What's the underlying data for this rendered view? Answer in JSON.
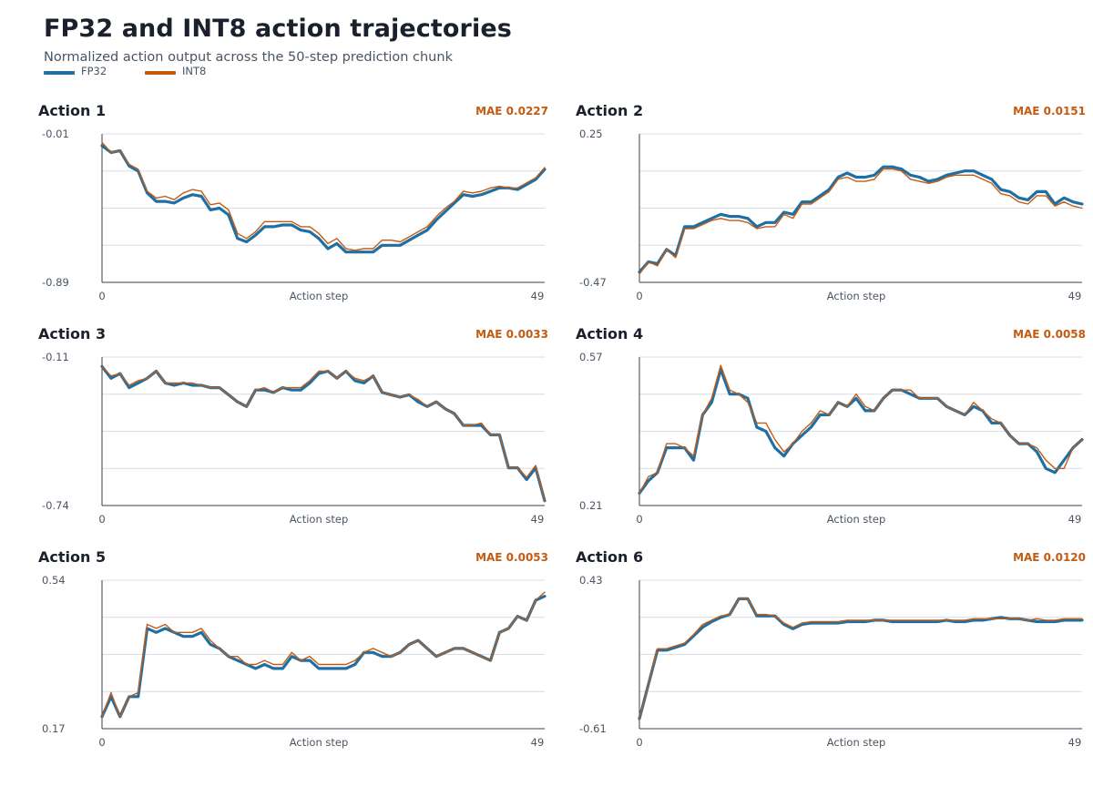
{
  "title": "FP32 and INT8 action trajectories",
  "subtitle": "Normalized action output across the 50-step prediction chunk",
  "legend": [
    {
      "label": "FP32",
      "color": "#1f6fa3"
    },
    {
      "label": "INT8",
      "color": "#c55a11"
    }
  ],
  "chart_data": [
    {
      "type": "line",
      "title": "Action 1",
      "annotation": "MAE 0.0227",
      "xlabel": "Action step",
      "xlim": [
        0,
        49
      ],
      "ylim": [
        -0.89,
        -0.01
      ],
      "ytick_labels": [
        "-0.01",
        "-0.89"
      ],
      "xtick_labels": [
        "0",
        "49"
      ],
      "x": [
        0,
        1,
        2,
        3,
        4,
        5,
        6,
        7,
        8,
        9,
        10,
        11,
        12,
        13,
        14,
        15,
        16,
        17,
        18,
        19,
        20,
        21,
        22,
        23,
        24,
        25,
        26,
        27,
        28,
        29,
        30,
        31,
        32,
        33,
        34,
        35,
        36,
        37,
        38,
        39,
        40,
        41,
        42,
        43,
        44,
        45,
        46,
        47,
        48,
        49
      ],
      "series": [
        {
          "name": "FP32",
          "values": [
            -0.08,
            -0.12,
            -0.11,
            -0.2,
            -0.23,
            -0.36,
            -0.41,
            -0.41,
            -0.42,
            -0.39,
            -0.37,
            -0.38,
            -0.46,
            -0.45,
            -0.49,
            -0.63,
            -0.65,
            -0.61,
            -0.56,
            -0.56,
            -0.55,
            -0.55,
            -0.58,
            -0.59,
            -0.63,
            -0.69,
            -0.66,
            -0.71,
            -0.71,
            -0.71,
            -0.71,
            -0.67,
            -0.67,
            -0.67,
            -0.64,
            -0.61,
            -0.58,
            -0.52,
            -0.47,
            -0.42,
            -0.37,
            -0.38,
            -0.37,
            -0.35,
            -0.33,
            -0.33,
            -0.34,
            -0.31,
            -0.28,
            -0.22
          ]
        },
        {
          "name": "INT8",
          "values": [
            -0.06,
            -0.12,
            -0.11,
            -0.19,
            -0.22,
            -0.35,
            -0.39,
            -0.38,
            -0.4,
            -0.36,
            -0.34,
            -0.35,
            -0.43,
            -0.42,
            -0.46,
            -0.6,
            -0.63,
            -0.59,
            -0.53,
            -0.53,
            -0.53,
            -0.53,
            -0.56,
            -0.56,
            -0.6,
            -0.66,
            -0.63,
            -0.69,
            -0.7,
            -0.69,
            -0.69,
            -0.64,
            -0.64,
            -0.65,
            -0.62,
            -0.59,
            -0.56,
            -0.5,
            -0.45,
            -0.41,
            -0.35,
            -0.36,
            -0.35,
            -0.33,
            -0.32,
            -0.33,
            -0.33,
            -0.3,
            -0.27,
            -0.21
          ]
        }
      ]
    },
    {
      "type": "line",
      "title": "Action 2",
      "annotation": "MAE 0.0151",
      "xlabel": "Action step",
      "xlim": [
        0,
        49
      ],
      "ylim": [
        -0.47,
        0.25
      ],
      "ytick_labels": [
        "0.25",
        "-0.47"
      ],
      "xtick_labels": [
        "0",
        "49"
      ],
      "x": [
        0,
        1,
        2,
        3,
        4,
        5,
        6,
        7,
        8,
        9,
        10,
        11,
        12,
        13,
        14,
        15,
        16,
        17,
        18,
        19,
        20,
        21,
        22,
        23,
        24,
        25,
        26,
        27,
        28,
        29,
        30,
        31,
        32,
        33,
        34,
        35,
        36,
        37,
        38,
        39,
        40,
        41,
        42,
        43,
        44,
        45,
        46,
        47,
        48,
        49
      ],
      "series": [
        {
          "name": "FP32",
          "values": [
            -0.42,
            -0.37,
            -0.38,
            -0.31,
            -0.34,
            -0.2,
            -0.2,
            -0.18,
            -0.16,
            -0.14,
            -0.15,
            -0.15,
            -0.16,
            -0.2,
            -0.18,
            -0.18,
            -0.13,
            -0.14,
            -0.08,
            -0.08,
            -0.05,
            -0.02,
            0.04,
            0.06,
            0.04,
            0.04,
            0.05,
            0.09,
            0.09,
            0.08,
            0.05,
            0.04,
            0.02,
            0.03,
            0.05,
            0.06,
            0.07,
            0.07,
            0.05,
            0.03,
            -0.02,
            -0.03,
            -0.06,
            -0.07,
            -0.03,
            -0.03,
            -0.09,
            -0.06,
            -0.08,
            -0.09
          ]
        },
        {
          "name": "INT8",
          "values": [
            -0.43,
            -0.37,
            -0.39,
            -0.31,
            -0.35,
            -0.21,
            -0.21,
            -0.19,
            -0.17,
            -0.16,
            -0.17,
            -0.17,
            -0.18,
            -0.21,
            -0.2,
            -0.2,
            -0.14,
            -0.16,
            -0.09,
            -0.09,
            -0.06,
            -0.03,
            0.03,
            0.04,
            0.02,
            0.02,
            0.03,
            0.08,
            0.08,
            0.07,
            0.03,
            0.02,
            0.01,
            0.02,
            0.04,
            0.05,
            0.05,
            0.05,
            0.03,
            0.01,
            -0.04,
            -0.05,
            -0.08,
            -0.09,
            -0.05,
            -0.05,
            -0.1,
            -0.08,
            -0.1,
            -0.11
          ]
        }
      ]
    },
    {
      "type": "line",
      "title": "Action 3",
      "annotation": "MAE 0.0033",
      "xlabel": "Action step",
      "xlim": [
        0,
        49
      ],
      "ylim": [
        -0.74,
        -0.11
      ],
      "ytick_labels": [
        "-0.11",
        "-0.74"
      ],
      "xtick_labels": [
        "0",
        "49"
      ],
      "x": [
        0,
        1,
        2,
        3,
        4,
        5,
        6,
        7,
        8,
        9,
        10,
        11,
        12,
        13,
        14,
        15,
        16,
        17,
        18,
        19,
        20,
        21,
        22,
        23,
        24,
        25,
        26,
        27,
        28,
        29,
        30,
        31,
        32,
        33,
        34,
        35,
        36,
        37,
        38,
        39,
        40,
        41,
        42,
        43,
        44,
        45,
        46,
        47,
        48,
        49
      ],
      "series": [
        {
          "name": "FP32",
          "values": [
            -0.15,
            -0.2,
            -0.18,
            -0.24,
            -0.22,
            -0.2,
            -0.17,
            -0.22,
            -0.23,
            -0.22,
            -0.23,
            -0.23,
            -0.24,
            -0.24,
            -0.27,
            -0.3,
            -0.32,
            -0.25,
            -0.25,
            -0.26,
            -0.24,
            -0.25,
            -0.25,
            -0.22,
            -0.18,
            -0.17,
            -0.2,
            -0.17,
            -0.21,
            -0.22,
            -0.19,
            -0.26,
            -0.27,
            -0.28,
            -0.27,
            -0.3,
            -0.32,
            -0.3,
            -0.33,
            -0.35,
            -0.4,
            -0.4,
            -0.4,
            -0.44,
            -0.44,
            -0.58,
            -0.58,
            -0.63,
            -0.58,
            -0.72
          ]
        },
        {
          "name": "INT8",
          "values": [
            -0.15,
            -0.19,
            -0.18,
            -0.23,
            -0.21,
            -0.2,
            -0.17,
            -0.22,
            -0.22,
            -0.22,
            -0.22,
            -0.23,
            -0.24,
            -0.24,
            -0.27,
            -0.3,
            -0.32,
            -0.25,
            -0.24,
            -0.26,
            -0.24,
            -0.24,
            -0.24,
            -0.21,
            -0.17,
            -0.17,
            -0.2,
            -0.17,
            -0.2,
            -0.21,
            -0.19,
            -0.26,
            -0.27,
            -0.28,
            -0.27,
            -0.29,
            -0.32,
            -0.3,
            -0.33,
            -0.35,
            -0.4,
            -0.4,
            -0.39,
            -0.44,
            -0.44,
            -0.58,
            -0.58,
            -0.62,
            -0.57,
            -0.72
          ]
        }
      ]
    },
    {
      "type": "line",
      "title": "Action 4",
      "annotation": "MAE 0.0058",
      "xlabel": "Action step",
      "xlim": [
        0,
        49
      ],
      "ylim": [
        0.21,
        0.57
      ],
      "ytick_labels": [
        "0.57",
        "0.21"
      ],
      "xtick_labels": [
        "0",
        "49"
      ],
      "x": [
        0,
        1,
        2,
        3,
        4,
        5,
        6,
        7,
        8,
        9,
        10,
        11,
        12,
        13,
        14,
        15,
        16,
        17,
        18,
        19,
        20,
        21,
        22,
        23,
        24,
        25,
        26,
        27,
        28,
        29,
        30,
        31,
        32,
        33,
        34,
        35,
        36,
        37,
        38,
        39,
        40,
        41,
        42,
        43,
        44,
        45,
        46,
        47,
        48,
        49
      ],
      "series": [
        {
          "name": "FP32",
          "values": [
            0.24,
            0.27,
            0.29,
            0.35,
            0.35,
            0.35,
            0.32,
            0.43,
            0.46,
            0.54,
            0.48,
            0.48,
            0.47,
            0.4,
            0.39,
            0.35,
            0.33,
            0.36,
            0.38,
            0.4,
            0.43,
            0.43,
            0.46,
            0.45,
            0.47,
            0.44,
            0.44,
            0.47,
            0.49,
            0.49,
            0.48,
            0.47,
            0.47,
            0.47,
            0.45,
            0.44,
            0.43,
            0.45,
            0.44,
            0.41,
            0.41,
            0.38,
            0.36,
            0.36,
            0.34,
            0.3,
            0.29,
            0.32,
            0.35,
            0.37
          ]
        },
        {
          "name": "INT8",
          "values": [
            0.24,
            0.28,
            0.29,
            0.36,
            0.36,
            0.35,
            0.33,
            0.43,
            0.47,
            0.55,
            0.49,
            0.48,
            0.46,
            0.41,
            0.41,
            0.37,
            0.34,
            0.36,
            0.39,
            0.41,
            0.44,
            0.43,
            0.46,
            0.45,
            0.48,
            0.45,
            0.44,
            0.47,
            0.49,
            0.49,
            0.49,
            0.47,
            0.47,
            0.47,
            0.45,
            0.44,
            0.43,
            0.46,
            0.44,
            0.42,
            0.41,
            0.38,
            0.36,
            0.36,
            0.35,
            0.32,
            0.3,
            0.3,
            0.35,
            0.37
          ]
        }
      ]
    },
    {
      "type": "line",
      "title": "Action 5",
      "annotation": "MAE 0.0053",
      "xlabel": "Action step",
      "xlim": [
        0,
        49
      ],
      "ylim": [
        0.17,
        0.54
      ],
      "ytick_labels": [
        "0.54",
        "0.17"
      ],
      "xtick_labels": [
        "0",
        "49"
      ],
      "x": [
        0,
        1,
        2,
        3,
        4,
        5,
        6,
        7,
        8,
        9,
        10,
        11,
        12,
        13,
        14,
        15,
        16,
        17,
        18,
        19,
        20,
        21,
        22,
        23,
        24,
        25,
        26,
        27,
        28,
        29,
        30,
        31,
        32,
        33,
        34,
        35,
        36,
        37,
        38,
        39,
        40,
        41,
        42,
        43,
        44,
        45,
        46,
        47,
        48,
        49
      ],
      "series": [
        {
          "name": "FP32",
          "values": [
            0.2,
            0.25,
            0.2,
            0.25,
            0.25,
            0.42,
            0.41,
            0.42,
            0.41,
            0.4,
            0.4,
            0.41,
            0.38,
            0.37,
            0.35,
            0.34,
            0.33,
            0.32,
            0.33,
            0.32,
            0.32,
            0.35,
            0.34,
            0.34,
            0.32,
            0.32,
            0.32,
            0.32,
            0.33,
            0.36,
            0.36,
            0.35,
            0.35,
            0.36,
            0.38,
            0.39,
            0.37,
            0.35,
            0.36,
            0.37,
            0.37,
            0.36,
            0.35,
            0.34,
            0.41,
            0.42,
            0.45,
            0.44,
            0.49,
            0.5
          ]
        },
        {
          "name": "INT8",
          "values": [
            0.2,
            0.26,
            0.2,
            0.25,
            0.26,
            0.43,
            0.42,
            0.43,
            0.41,
            0.41,
            0.41,
            0.42,
            0.39,
            0.37,
            0.35,
            0.35,
            0.33,
            0.33,
            0.34,
            0.33,
            0.33,
            0.36,
            0.34,
            0.35,
            0.33,
            0.33,
            0.33,
            0.33,
            0.34,
            0.36,
            0.37,
            0.36,
            0.35,
            0.36,
            0.38,
            0.39,
            0.37,
            0.35,
            0.36,
            0.37,
            0.37,
            0.36,
            0.35,
            0.34,
            0.41,
            0.42,
            0.45,
            0.44,
            0.49,
            0.51
          ]
        }
      ]
    },
    {
      "type": "line",
      "title": "Action 6",
      "annotation": "MAE 0.0120",
      "xlabel": "Action step",
      "xlim": [
        0,
        49
      ],
      "ylim": [
        -0.61,
        0.43
      ],
      "ytick_labels": [
        "0.43",
        "-0.61"
      ],
      "xtick_labels": [
        "0",
        "49"
      ],
      "x": [
        0,
        1,
        2,
        3,
        4,
        5,
        6,
        7,
        8,
        9,
        10,
        11,
        12,
        13,
        14,
        15,
        16,
        17,
        18,
        19,
        20,
        21,
        22,
        23,
        24,
        25,
        26,
        27,
        28,
        29,
        30,
        31,
        32,
        33,
        34,
        35,
        36,
        37,
        38,
        39,
        40,
        41,
        42,
        43,
        44,
        45,
        46,
        47,
        48,
        49
      ],
      "series": [
        {
          "name": "FP32",
          "values": [
            -0.54,
            -0.3,
            -0.06,
            -0.06,
            -0.04,
            -0.02,
            0.04,
            0.1,
            0.14,
            0.17,
            0.19,
            0.3,
            0.3,
            0.18,
            0.18,
            0.18,
            0.12,
            0.09,
            0.12,
            0.13,
            0.13,
            0.13,
            0.13,
            0.14,
            0.14,
            0.14,
            0.15,
            0.15,
            0.14,
            0.14,
            0.14,
            0.14,
            0.14,
            0.14,
            0.15,
            0.14,
            0.14,
            0.15,
            0.15,
            0.16,
            0.17,
            0.16,
            0.16,
            0.15,
            0.14,
            0.14,
            0.14,
            0.15,
            0.15,
            0.15
          ]
        },
        {
          "name": "INT8",
          "values": [
            -0.54,
            -0.3,
            -0.05,
            -0.05,
            -0.03,
            -0.01,
            0.05,
            0.12,
            0.15,
            0.18,
            0.19,
            0.3,
            0.3,
            0.19,
            0.19,
            0.18,
            0.13,
            0.1,
            0.13,
            0.14,
            0.14,
            0.14,
            0.14,
            0.15,
            0.15,
            0.15,
            0.15,
            0.15,
            0.15,
            0.15,
            0.15,
            0.15,
            0.15,
            0.15,
            0.15,
            0.15,
            0.15,
            0.16,
            0.16,
            0.16,
            0.16,
            0.16,
            0.16,
            0.15,
            0.16,
            0.15,
            0.15,
            0.16,
            0.16,
            0.16
          ]
        }
      ]
    }
  ]
}
